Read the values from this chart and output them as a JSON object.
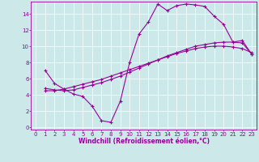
{
  "xlabel": "Windchill (Refroidissement éolien,°C)",
  "bg_color": "#cce8e8",
  "line_color": "#990099",
  "xlim": [
    -0.5,
    23.5
  ],
  "ylim": [
    -0.3,
    15.5
  ],
  "xticks": [
    0,
    1,
    2,
    3,
    4,
    5,
    6,
    7,
    8,
    9,
    10,
    11,
    12,
    13,
    14,
    15,
    16,
    17,
    18,
    19,
    20,
    21,
    22,
    23
  ],
  "yticks": [
    0,
    2,
    4,
    6,
    8,
    10,
    12,
    14
  ],
  "line1_x": [
    1,
    2,
    3,
    4,
    5,
    6,
    7,
    8,
    9,
    10,
    11,
    12,
    13,
    14,
    15,
    16,
    17,
    18,
    19,
    20,
    21,
    22,
    23
  ],
  "line1_y": [
    7.0,
    5.4,
    4.7,
    4.1,
    3.8,
    2.6,
    0.8,
    0.6,
    3.2,
    8.0,
    11.5,
    13.0,
    15.2,
    14.4,
    15.0,
    15.2,
    15.1,
    14.9,
    13.7,
    12.7,
    10.5,
    10.7,
    9.0
  ],
  "line2_x": [
    1,
    2,
    3,
    4,
    5,
    6,
    7,
    8,
    9,
    10,
    11,
    12,
    13,
    14,
    15,
    16,
    17,
    18,
    19,
    20,
    21,
    22,
    23
  ],
  "line2_y": [
    4.8,
    4.6,
    4.5,
    4.6,
    4.9,
    5.2,
    5.5,
    5.9,
    6.3,
    6.8,
    7.3,
    7.8,
    8.3,
    8.8,
    9.2,
    9.6,
    10.0,
    10.2,
    10.4,
    10.5,
    10.5,
    10.4,
    9.0
  ],
  "line3_x": [
    1,
    2,
    3,
    4,
    5,
    6,
    7,
    8,
    9,
    10,
    11,
    12,
    13,
    14,
    15,
    16,
    17,
    18,
    19,
    20,
    21,
    22,
    23
  ],
  "line3_y": [
    4.5,
    4.5,
    4.7,
    5.0,
    5.3,
    5.6,
    5.9,
    6.3,
    6.7,
    7.1,
    7.5,
    7.9,
    8.3,
    8.7,
    9.1,
    9.4,
    9.7,
    9.9,
    10.0,
    10.0,
    9.9,
    9.7,
    9.2
  ],
  "markersize": 3,
  "linewidth": 0.8,
  "xlabel_fontsize": 5.5,
  "tick_fontsize": 5.0
}
